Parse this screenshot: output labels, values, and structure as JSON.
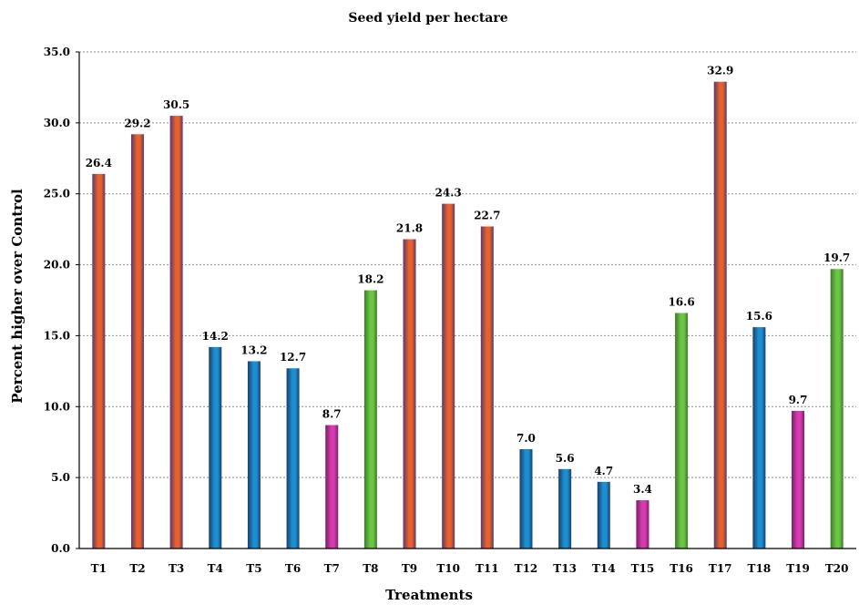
{
  "chart_data": {
    "type": "bar",
    "title": "Seed yield per hectare",
    "xlabel": "Treatments",
    "ylabel": "Percent higher over Control",
    "ylim": [
      0,
      35
    ],
    "ytick_step": 5,
    "grid": true,
    "categories": [
      "T1",
      "T2",
      "T3",
      "T4",
      "T5",
      "T6",
      "T7",
      "T8",
      "T9",
      "T10",
      "T11",
      "T12",
      "T13",
      "T14",
      "T15",
      "T16",
      "T17",
      "T18",
      "T19",
      "T20"
    ],
    "values": [
      26.4,
      29.2,
      30.5,
      14.2,
      13.2,
      12.7,
      8.7,
      18.2,
      21.8,
      24.3,
      22.7,
      7.0,
      5.6,
      4.7,
      3.4,
      16.6,
      32.9,
      15.6,
      9.7,
      19.7
    ],
    "value_labels": [
      "26.4",
      "29.2",
      "30.5",
      "14.2",
      "13.2",
      "12.7",
      "8.7",
      "18.2",
      "21.8",
      "24.3",
      "22.7",
      "7.0",
      "5.6",
      "4.7",
      "3.4",
      "16.6",
      "32.9",
      "15.6",
      "9.7",
      "19.7"
    ],
    "ytick_labels": [
      "0.0",
      "5.0",
      "10.0",
      "15.0",
      "20.0",
      "25.0",
      "30.0",
      "35.0"
    ],
    "bar_colors": [
      "#e8602a",
      "#e8602a",
      "#e8602a",
      "#1b8fd0",
      "#1b8fd0",
      "#1b8fd0",
      "#d63bb0",
      "#6cc644",
      "#e8602a",
      "#e8602a",
      "#e8602a",
      "#1b8fd0",
      "#1b8fd0",
      "#1b8fd0",
      "#d63bb0",
      "#6cc644",
      "#e8602a",
      "#1b8fd0",
      "#d63bb0",
      "#6cc644"
    ],
    "bar_edge_colors": [
      "#5a3a6e",
      "#5a3a6e",
      "#5a3a6e",
      "#1a3f6e",
      "#1a3f6e",
      "#1a3f6e",
      "#7a1e66",
      "#3a7a2a",
      "#5a3a6e",
      "#5a3a6e",
      "#5a3a6e",
      "#1a3f6e",
      "#1a3f6e",
      "#1a3f6e",
      "#7a1e66",
      "#3a7a2a",
      "#5a3a6e",
      "#1a3f6e",
      "#7a1e66",
      "#3a7a2a"
    ]
  }
}
